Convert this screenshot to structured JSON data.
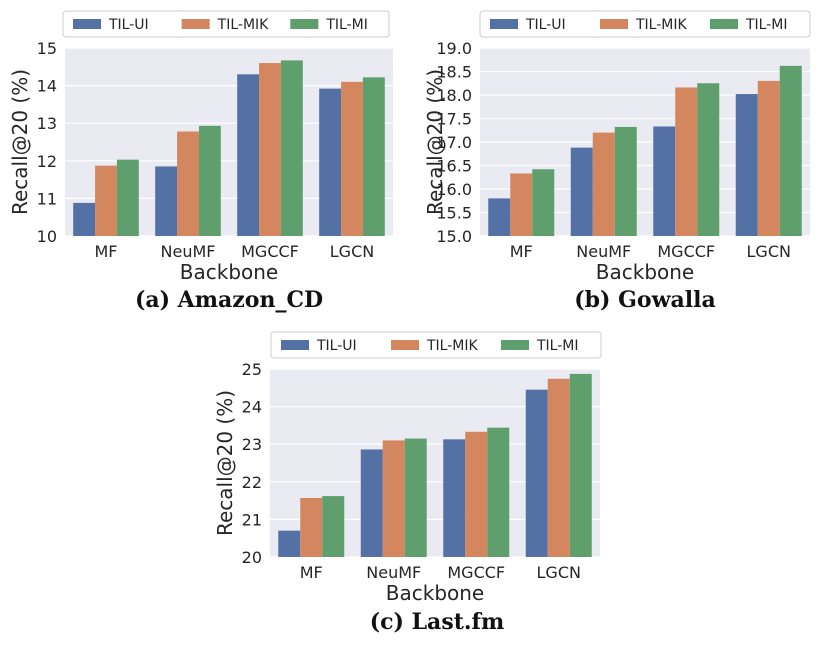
{
  "colors": {
    "TIL-UI": "#5471a6",
    "TIL-MIK": "#d4875f",
    "TIL-MI": "#5e9f6d",
    "panel_bg": "#eaeaf2",
    "grid": "#ffffff"
  },
  "chart_data": [
    {
      "type": "bar",
      "caption": "(a) Amazon_CD",
      "categories": [
        "MF",
        "NeuMF",
        "MGCCF",
        "LGCN"
      ],
      "series": [
        {
          "name": "TIL-UI",
          "values": [
            10.88,
            11.85,
            14.3,
            13.92
          ]
        },
        {
          "name": "TIL-MIK",
          "values": [
            11.87,
            12.78,
            14.6,
            14.1
          ]
        },
        {
          "name": "TIL-MI",
          "values": [
            12.03,
            12.93,
            14.67,
            14.22
          ]
        }
      ],
      "xlabel": "Backbone",
      "ylabel": "Recall@20 (%)",
      "ylim": [
        10,
        15
      ],
      "yticks": [
        "10",
        "11",
        "12",
        "13",
        "14",
        "15"
      ],
      "legend": "top"
    },
    {
      "type": "bar",
      "caption": "(b) Gowalla",
      "categories": [
        "MF",
        "NeuMF",
        "MGCCF",
        "LGCN"
      ],
      "series": [
        {
          "name": "TIL-UI",
          "values": [
            15.8,
            16.88,
            17.33,
            18.02
          ]
        },
        {
          "name": "TIL-MIK",
          "values": [
            16.33,
            17.2,
            18.16,
            18.3
          ]
        },
        {
          "name": "TIL-MI",
          "values": [
            16.42,
            17.32,
            18.25,
            18.62
          ]
        }
      ],
      "xlabel": "Backbone",
      "ylabel": "Recall@20 (%)",
      "ylim": [
        15.0,
        19.0
      ],
      "yticks": [
        "15.0",
        "15.5",
        "16.0",
        "16.5",
        "17.0",
        "17.5",
        "18.0",
        "18.5",
        "19.0"
      ],
      "legend": "top"
    },
    {
      "type": "bar",
      "caption": "(c) Last.fm",
      "categories": [
        "MF",
        "NeuMF",
        "MGCCF",
        "LGCN"
      ],
      "series": [
        {
          "name": "TIL-UI",
          "values": [
            20.7,
            22.86,
            23.13,
            24.45
          ]
        },
        {
          "name": "TIL-MIK",
          "values": [
            21.57,
            23.1,
            23.33,
            24.74
          ]
        },
        {
          "name": "TIL-MI",
          "values": [
            21.62,
            23.15,
            23.44,
            24.87
          ]
        }
      ],
      "xlabel": "Backbone",
      "ylabel": "Recall@20 (%)",
      "ylim": [
        20,
        25
      ],
      "yticks": [
        "20",
        "21",
        "22",
        "23",
        "24",
        "25"
      ],
      "legend": "top"
    }
  ]
}
